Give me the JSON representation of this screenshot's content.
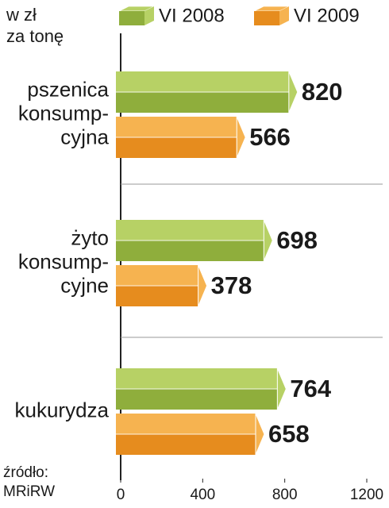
{
  "chart_data": {
    "type": "bar",
    "orientation": "horizontal",
    "unit_label": [
      "w zł",
      "za tonę"
    ],
    "source": [
      "źródło:",
      "MRiRW"
    ],
    "categories": [
      [
        "pszenica",
        "konsump-",
        "cyjna"
      ],
      [
        "żyto",
        "konsump-",
        "cyjne"
      ],
      [
        "kukurydza"
      ]
    ],
    "series": [
      {
        "name": "VI 2008",
        "color": "#b7d165",
        "shade": "#8fae3c",
        "values": [
          820,
          698,
          764
        ]
      },
      {
        "name": "VI 2009",
        "color": "#f6b350",
        "shade": "#e68c1e",
        "values": [
          566,
          378,
          658
        ]
      }
    ],
    "xlim": [
      0,
      1200
    ],
    "xticks": [
      0,
      400,
      800,
      1200
    ],
    "grid": false
  }
}
